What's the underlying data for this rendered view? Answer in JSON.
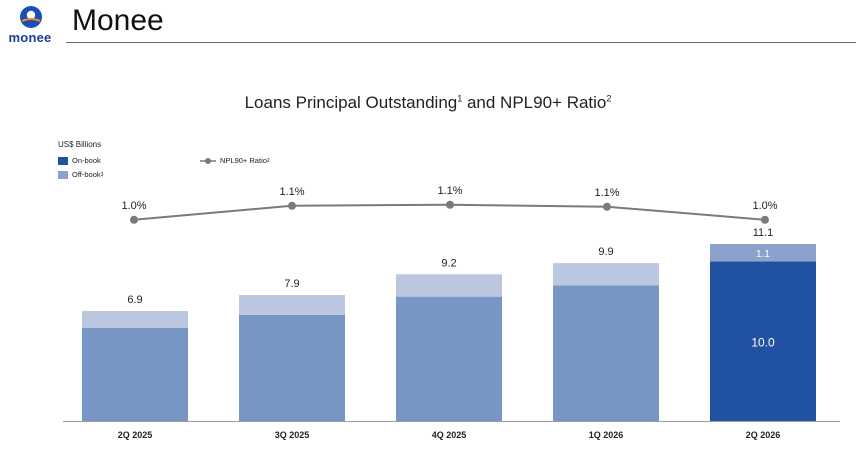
{
  "header": {
    "brand": "Monee",
    "logo_text": "monee"
  },
  "colors": {
    "on_book": "#7896c4",
    "on_book_highlight": "#2152a1",
    "off_book": "#bac7de",
    "off_book_highlight": "#8aa2cc",
    "line": "#7a7a7a",
    "accent_rule": "#5b6f86"
  },
  "chart_data": {
    "type": "bar",
    "title": "Loans Principal Outstanding",
    "title_sup": "1",
    "title_mid": " and NPL90+ Ratio",
    "title_sup2": "2",
    "ylabel": "US$ Billions",
    "categories": [
      "2Q 2025",
      "3Q 2025",
      "4Q 2025",
      "1Q 2026",
      "2Q 2026"
    ],
    "series": [
      {
        "name": "On-book",
        "values": [
          5.85,
          6.65,
          7.8,
          8.5,
          10.0
        ]
      },
      {
        "name": "Off-book",
        "name_sup": "3",
        "values": [
          1.05,
          1.25,
          1.4,
          1.4,
          1.1
        ]
      }
    ],
    "totals": [
      "6.9",
      "7.9",
      "9.2",
      "9.9",
      "11.1"
    ],
    "segment_labels": {
      "4": {
        "on": "10.0",
        "off": "1.1"
      }
    },
    "line_series": {
      "name": "NPL90+ Ratio",
      "name_sup": "2",
      "values": [
        1.0,
        1.1,
        1.1,
        1.1,
        1.0
      ],
      "labels": [
        "1.0%",
        "1.1%",
        "1.1%",
        "1.1%",
        "1.0%"
      ]
    },
    "ylim": [
      0,
      11.1
    ],
    "highlight_index": 4,
    "legend_position": "top-left"
  }
}
